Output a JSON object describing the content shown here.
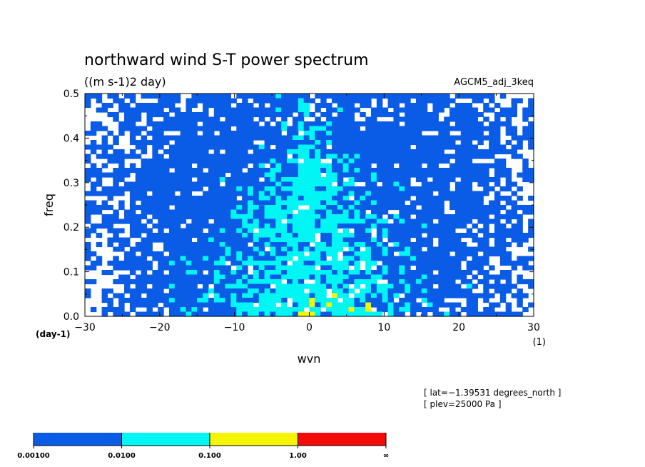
{
  "chart_data": {
    "type": "heatmap",
    "title": "northward wind S-T power spectrum",
    "subtitle": "((m s-1)2 day)",
    "run_label": "AGCM5_adj_3keq",
    "xlabel": "wvn",
    "x_unit": "(1)",
    "ylabel": "freq",
    "y_unit": "(day-1)",
    "xlim": [
      -30,
      30
    ],
    "ylim": [
      0.0,
      0.5
    ],
    "x_ticks": [
      "−30",
      "−20",
      "−10",
      "0",
      "10",
      "20",
      "30"
    ],
    "x_tick_values": [
      -30,
      -20,
      -10,
      0,
      10,
      20,
      30
    ],
    "y_ticks": [
      "0.0",
      "0.1",
      "0.2",
      "0.3",
      "0.4",
      "0.5"
    ],
    "y_tick_values": [
      0.0,
      0.1,
      0.2,
      0.3,
      0.4,
      0.5
    ],
    "info_lines": [
      "[ lat=−1.39531 degrees_north ]",
      "[ plev=25000 Pa ]"
    ],
    "levels": [
      {
        "label": "0.00100",
        "color": "#0a5ce6"
      },
      {
        "label": "0.0100",
        "color": "#00f5f5"
      },
      {
        "label": "0.100",
        "color": "#f5f500"
      },
      {
        "label": "1.00",
        "color": "#f50a0a"
      },
      {
        "label": "∞",
        "color": ""
      }
    ],
    "field_description": "power >= 0.001 over most of the domain; 0.01-0.1 band concentrated near wvn -10..10 at low freq; isolated 0.1-1 spots near wvn 0-5, freq < 0.05"
  }
}
